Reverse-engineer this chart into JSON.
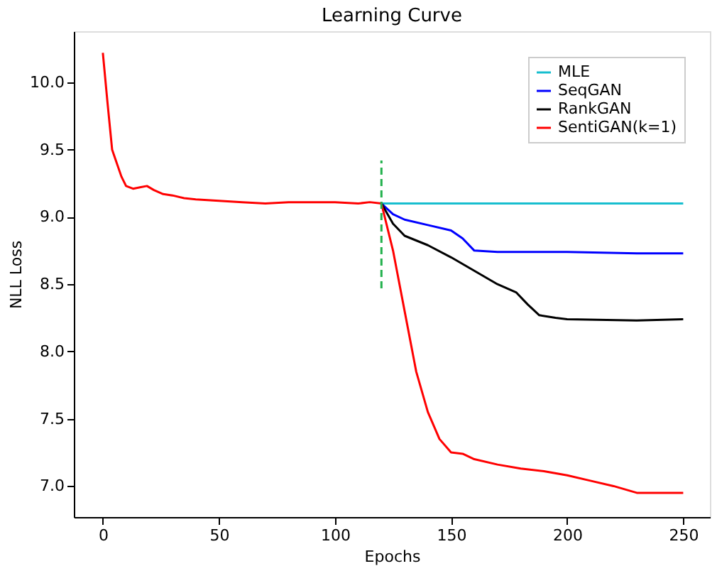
{
  "chart_data": {
    "type": "line",
    "title": "Learning Curve",
    "xlabel": "Epochs",
    "ylabel": "NLL Loss",
    "xlim": [
      -12.5,
      261.5
    ],
    "ylim": [
      6.77,
      10.38
    ],
    "xticks": [
      0,
      50,
      100,
      150,
      200,
      250
    ],
    "yticks": [
      {
        "value": 7,
        "label": "7.0"
      },
      {
        "value": 7.5,
        "label": "7.5"
      },
      {
        "value": 8,
        "label": "8.0"
      },
      {
        "value": 8.5,
        "label": "8.5"
      },
      {
        "value": 9,
        "label": "9.0"
      },
      {
        "value": 9.5,
        "label": "9.5"
      },
      {
        "value": 10,
        "label": "10.0"
      }
    ],
    "grid": false,
    "legend": "top right",
    "marker": "none",
    "line_style": "solid",
    "series": [
      {
        "name": "MLE",
        "color": "#17becf",
        "x": [
          120,
          150,
          200,
          250
        ],
        "values": [
          9.1,
          9.1,
          9.1,
          9.1
        ]
      },
      {
        "name": "SeqGAN",
        "color": "#0000ff",
        "x": [
          120,
          125,
          130,
          140,
          150,
          155,
          160,
          170,
          200,
          230,
          250
        ],
        "values": [
          9.1,
          9.02,
          8.98,
          8.94,
          8.9,
          8.84,
          8.75,
          8.74,
          8.74,
          8.73,
          8.73
        ]
      },
      {
        "name": "RankGAN",
        "color": "#000000",
        "x": [
          120,
          125,
          130,
          140,
          150,
          160,
          170,
          178,
          183,
          188,
          195,
          200,
          230,
          250
        ],
        "values": [
          9.1,
          8.95,
          8.86,
          8.79,
          8.7,
          8.6,
          8.5,
          8.44,
          8.35,
          8.27,
          8.25,
          8.24,
          8.23,
          8.24
        ]
      },
      {
        "name": "SentiGAN(k=1)",
        "color": "#ff0000",
        "x": [
          0,
          2,
          4,
          6,
          8,
          10,
          13,
          16,
          19,
          22,
          26,
          30,
          35,
          40,
          50,
          60,
          70,
          80,
          90,
          100,
          110,
          115,
          120,
          125,
          130,
          135,
          140,
          145,
          150,
          155,
          160,
          170,
          180,
          190,
          200,
          210,
          220,
          230,
          240,
          250
        ],
        "values": [
          10.22,
          9.85,
          9.5,
          9.4,
          9.3,
          9.23,
          9.21,
          9.22,
          9.23,
          9.2,
          9.17,
          9.16,
          9.14,
          9.13,
          9.12,
          9.11,
          9.1,
          9.11,
          9.11,
          9.11,
          9.1,
          9.11,
          9.1,
          8.75,
          8.3,
          7.85,
          7.55,
          7.35,
          7.25,
          7.24,
          7.2,
          7.16,
          7.13,
          7.11,
          7.08,
          7.04,
          7.0,
          6.95,
          6.95,
          6.95
        ]
      },
      {
        "color": "#22b14c",
        "line_style": "dashed",
        "x": [
          120,
          120
        ],
        "values": [
          8.47,
          9.42
        ]
      }
    ]
  }
}
